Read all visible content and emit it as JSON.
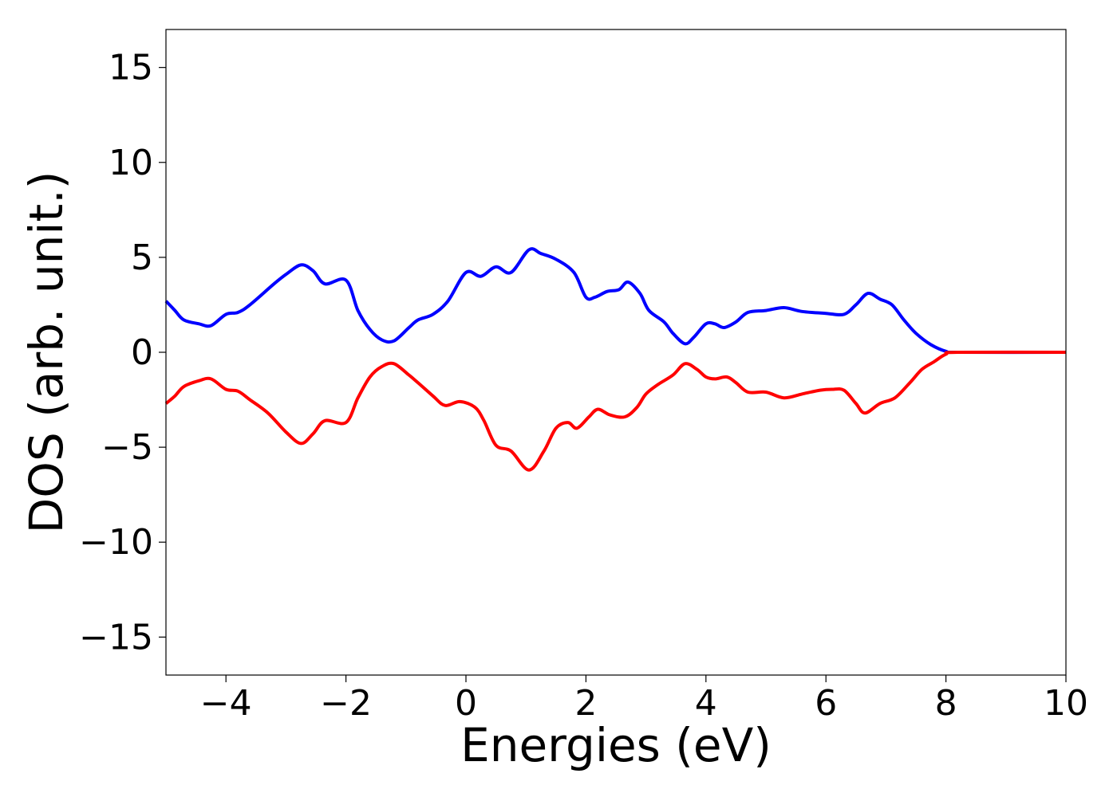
{
  "chart_data": {
    "type": "line",
    "title": "",
    "xlabel": "Energies (eV)",
    "ylabel": "DOS (arb. unit.)",
    "xlim": [
      -5,
      10
    ],
    "ylim": [
      -17,
      17
    ],
    "xticks": [
      -4,
      -2,
      0,
      2,
      4,
      6,
      8,
      10
    ],
    "yticks": [
      -15,
      -10,
      -5,
      0,
      5,
      10,
      15
    ],
    "xtick_labels": [
      "−4",
      "−2",
      "0",
      "2",
      "4",
      "6",
      "8",
      "10"
    ],
    "ytick_labels": [
      "−15",
      "−10",
      "−5",
      "0",
      "5",
      "10",
      "15"
    ],
    "grid": false,
    "legend": "none",
    "series": [
      {
        "color": "#0000ff",
        "points": [
          [
            -5.0,
            2.7
          ],
          [
            -4.85,
            2.2
          ],
          [
            -4.7,
            1.7
          ],
          [
            -4.45,
            1.5
          ],
          [
            -4.25,
            1.4
          ],
          [
            -4.0,
            2.0
          ],
          [
            -3.8,
            2.1
          ],
          [
            -3.6,
            2.5
          ],
          [
            -3.2,
            3.6
          ],
          [
            -3.0,
            4.1
          ],
          [
            -2.75,
            4.6
          ],
          [
            -2.55,
            4.3
          ],
          [
            -2.35,
            3.6
          ],
          [
            -2.0,
            3.8
          ],
          [
            -1.8,
            2.2
          ],
          [
            -1.6,
            1.2
          ],
          [
            -1.4,
            0.65
          ],
          [
            -1.2,
            0.6
          ],
          [
            -0.95,
            1.3
          ],
          [
            -0.8,
            1.7
          ],
          [
            -0.55,
            2.0
          ],
          [
            -0.3,
            2.7
          ],
          [
            0.0,
            4.2
          ],
          [
            0.25,
            4.0
          ],
          [
            0.5,
            4.5
          ],
          [
            0.75,
            4.2
          ],
          [
            1.05,
            5.4
          ],
          [
            1.25,
            5.2
          ],
          [
            1.5,
            4.9
          ],
          [
            1.8,
            4.2
          ],
          [
            2.0,
            2.9
          ],
          [
            2.15,
            2.9
          ],
          [
            2.35,
            3.2
          ],
          [
            2.55,
            3.3
          ],
          [
            2.7,
            3.7
          ],
          [
            2.9,
            3.1
          ],
          [
            3.05,
            2.2
          ],
          [
            3.3,
            1.6
          ],
          [
            3.45,
            1.0
          ],
          [
            3.65,
            0.45
          ],
          [
            3.8,
            0.8
          ],
          [
            4.0,
            1.5
          ],
          [
            4.15,
            1.5
          ],
          [
            4.3,
            1.3
          ],
          [
            4.5,
            1.6
          ],
          [
            4.7,
            2.1
          ],
          [
            5.0,
            2.2
          ],
          [
            5.3,
            2.35
          ],
          [
            5.6,
            2.15
          ],
          [
            6.0,
            2.05
          ],
          [
            6.3,
            2.0
          ],
          [
            6.5,
            2.5
          ],
          [
            6.7,
            3.1
          ],
          [
            6.9,
            2.8
          ],
          [
            7.1,
            2.5
          ],
          [
            7.3,
            1.7
          ],
          [
            7.5,
            1.0
          ],
          [
            7.75,
            0.4
          ],
          [
            8.0,
            0.05
          ],
          [
            8.2,
            0.0
          ],
          [
            10.0,
            0.0
          ]
        ]
      },
      {
        "color": "#ff0000",
        "points": [
          [
            -5.0,
            -2.7
          ],
          [
            -4.85,
            -2.3
          ],
          [
            -4.7,
            -1.8
          ],
          [
            -4.45,
            -1.5
          ],
          [
            -4.25,
            -1.4
          ],
          [
            -4.0,
            -1.95
          ],
          [
            -3.8,
            -2.05
          ],
          [
            -3.6,
            -2.5
          ],
          [
            -3.3,
            -3.2
          ],
          [
            -3.0,
            -4.2
          ],
          [
            -2.75,
            -4.8
          ],
          [
            -2.55,
            -4.3
          ],
          [
            -2.35,
            -3.6
          ],
          [
            -2.0,
            -3.7
          ],
          [
            -1.8,
            -2.4
          ],
          [
            -1.6,
            -1.3
          ],
          [
            -1.4,
            -0.75
          ],
          [
            -1.2,
            -0.6
          ],
          [
            -0.95,
            -1.2
          ],
          [
            -0.8,
            -1.6
          ],
          [
            -0.55,
            -2.3
          ],
          [
            -0.35,
            -2.8
          ],
          [
            -0.1,
            -2.6
          ],
          [
            0.15,
            -2.9
          ],
          [
            0.3,
            -3.6
          ],
          [
            0.5,
            -4.9
          ],
          [
            0.75,
            -5.2
          ],
          [
            1.05,
            -6.2
          ],
          [
            1.3,
            -5.2
          ],
          [
            1.5,
            -4.0
          ],
          [
            1.7,
            -3.7
          ],
          [
            1.85,
            -4.0
          ],
          [
            2.05,
            -3.4
          ],
          [
            2.2,
            -3.0
          ],
          [
            2.4,
            -3.3
          ],
          [
            2.65,
            -3.4
          ],
          [
            2.85,
            -2.9
          ],
          [
            3.0,
            -2.2
          ],
          [
            3.2,
            -1.7
          ],
          [
            3.45,
            -1.2
          ],
          [
            3.65,
            -0.6
          ],
          [
            3.85,
            -0.9
          ],
          [
            4.0,
            -1.3
          ],
          [
            4.15,
            -1.4
          ],
          [
            4.35,
            -1.3
          ],
          [
            4.5,
            -1.6
          ],
          [
            4.7,
            -2.1
          ],
          [
            5.0,
            -2.1
          ],
          [
            5.3,
            -2.4
          ],
          [
            5.6,
            -2.2
          ],
          [
            5.9,
            -2.0
          ],
          [
            6.1,
            -1.95
          ],
          [
            6.3,
            -2.0
          ],
          [
            6.5,
            -2.7
          ],
          [
            6.65,
            -3.2
          ],
          [
            6.9,
            -2.7
          ],
          [
            7.15,
            -2.4
          ],
          [
            7.4,
            -1.6
          ],
          [
            7.6,
            -0.9
          ],
          [
            7.8,
            -0.5
          ],
          [
            8.0,
            -0.1
          ],
          [
            8.2,
            0.0
          ],
          [
            10.0,
            0.0
          ]
        ]
      }
    ]
  }
}
